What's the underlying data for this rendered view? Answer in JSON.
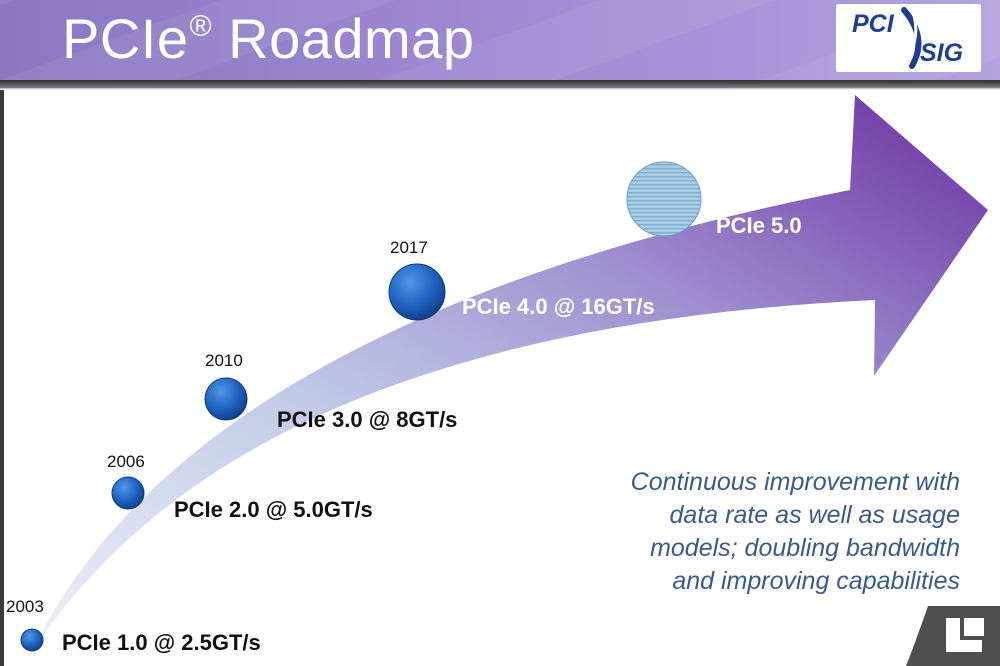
{
  "header": {
    "title": "PCIe",
    "title_mark": "®",
    "title_rest": " Roadmap",
    "logo": {
      "line1": "PCI",
      "line2": "SIG"
    }
  },
  "milestones": [
    {
      "year": "2003",
      "label": "PCIe 1.0 @ 2.5GT/s"
    },
    {
      "year": "2006",
      "label": "PCIe 2.0 @ 5.0GT/s"
    },
    {
      "year": "2010",
      "label": "PCIe 3.0 @ 8GT/s"
    },
    {
      "year": "2017",
      "label": "PCIe 4.0 @ 16GT/s"
    },
    {
      "year": "",
      "label": "PCIe 5.0"
    }
  ],
  "note": {
    "lines": [
      "Continuous improvement with",
      "data rate as well as usage",
      "models; doubling bandwidth",
      "and improving capabilities"
    ]
  },
  "colors": {
    "header": "#9b86cf",
    "arrow_tip": "#6f35a5",
    "arrow_base": "#dde3f1",
    "node": "#1f5fb8",
    "future_node": "#9ec2dc",
    "note_text": "#3a5a8c"
  }
}
